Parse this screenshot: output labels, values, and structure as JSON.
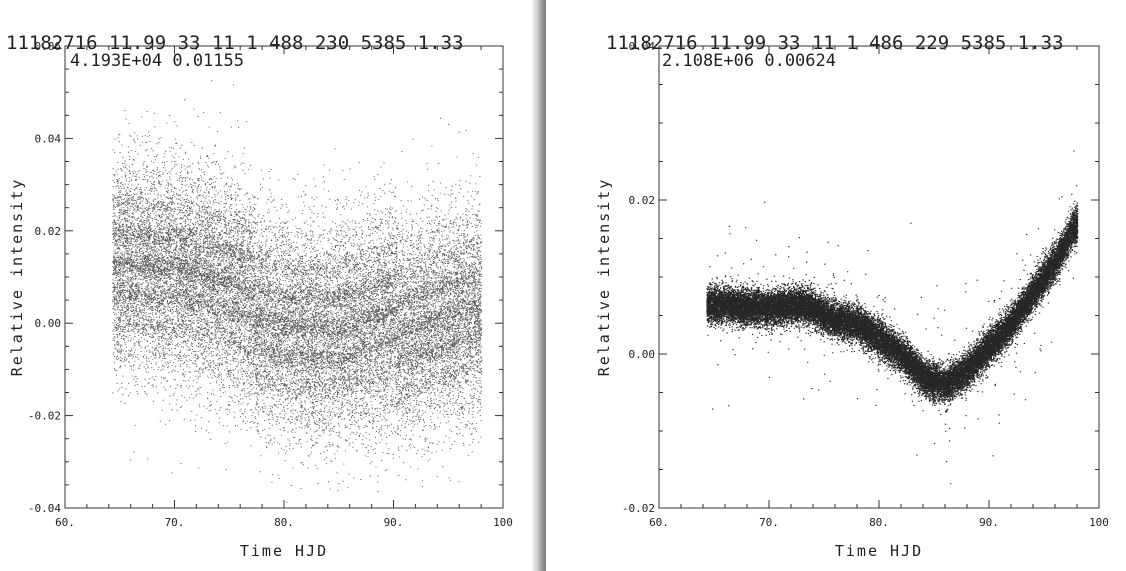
{
  "chart_data": [
    {
      "type": "scatter",
      "header": "11182716 11.99 33 11 1 488 230  5385 1.33",
      "subheader": "4.193E+04  0.01155",
      "xlabel": "Time HJD",
      "ylabel": "Relative intensity",
      "xlim": [
        60,
        100
      ],
      "ylim": [
        -0.04,
        0.06
      ],
      "x_ticks": [
        "60.",
        "70.",
        "80.",
        "90.",
        "100"
      ],
      "y_ticks": [
        "-0.04",
        "-0.02",
        "0.00",
        "0.02",
        "0.04",
        "0.06"
      ],
      "x_range_data": [
        64.3,
        98.0
      ],
      "trend": [
        [
          64.3,
          0.013
        ],
        [
          70,
          0.01
        ],
        [
          75,
          0.005
        ],
        [
          80,
          -0.002
        ],
        [
          85,
          -0.004
        ],
        [
          90,
          -0.002
        ],
        [
          95,
          0.0
        ],
        [
          98,
          0.001
        ]
      ],
      "band_step": 0.0065,
      "band_period_days": 13,
      "scatter_sigma": 0.011,
      "marker_color": "#111111"
    },
    {
      "type": "scatter",
      "header": "11182716 11.99 33 11 1 486 229  5385 1.33",
      "subheader": "2.108E+06  0.00624",
      "xlabel": "Time HJD",
      "ylabel": "Relative intensity",
      "xlim": [
        60,
        100
      ],
      "ylim": [
        -0.02,
        0.04
      ],
      "x_ticks": [
        "60.",
        "70.",
        "80.",
        "90.",
        "100"
      ],
      "y_ticks": [
        "-0.02",
        "0.00",
        "0.02",
        "0.04"
      ],
      "x_range_data": [
        64.3,
        98.0
      ],
      "trend": [
        [
          64.3,
          0.0065
        ],
        [
          67,
          0.0063
        ],
        [
          70,
          0.006
        ],
        [
          73,
          0.0065
        ],
        [
          76,
          0.0045
        ],
        [
          78,
          0.004
        ],
        [
          80,
          0.002
        ],
        [
          82,
          0.0
        ],
        [
          84,
          -0.003
        ],
        [
          86,
          -0.004
        ],
        [
          88,
          -0.002
        ],
        [
          90,
          0.001
        ],
        [
          92,
          0.004
        ],
        [
          94,
          0.008
        ],
        [
          96,
          0.012
        ],
        [
          97.5,
          0.016
        ],
        [
          98,
          0.017
        ]
      ],
      "band_step": 0.0005,
      "scatter_sigma": 0.0018,
      "marker_color": "#000000"
    }
  ]
}
